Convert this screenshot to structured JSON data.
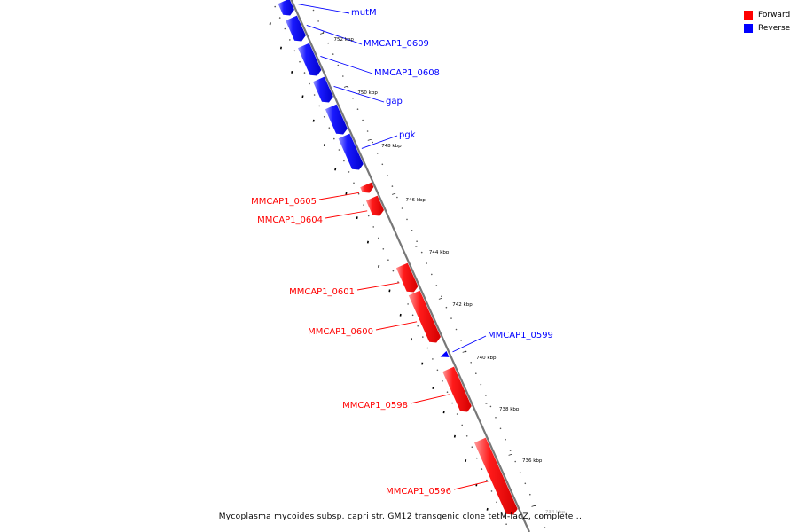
{
  "legend": {
    "forward_label": "Forward",
    "reverse_label": "Reverse",
    "forward_color": "#ff0000",
    "reverse_color": "#0000ff"
  },
  "caption": "Mycoplasma mycoides subsp. capri str. GM12 transgenic clone tetM-lacZ, complete ...",
  "ticks": [
    "752 kbp",
    "750 kbp",
    "748 kbp",
    "746 kbp",
    "744 kbp",
    "742 kbp",
    "740 kbp",
    "738 kbp",
    "736 kbp",
    "734 kbp"
  ],
  "genes": [
    {
      "name": "mutM",
      "strand": "reverse"
    },
    {
      "name": "MMCAP1_0609",
      "strand": "reverse"
    },
    {
      "name": "MMCAP1_0608",
      "strand": "reverse"
    },
    {
      "name": "gap",
      "strand": "reverse"
    },
    {
      "name": "pgk",
      "strand": "reverse"
    },
    {
      "name": "MMCAP1_0605",
      "strand": "forward"
    },
    {
      "name": "MMCAP1_0604",
      "strand": "forward"
    },
    {
      "name": "MMCAP1_0601",
      "strand": "forward"
    },
    {
      "name": "MMCAP1_0600",
      "strand": "forward"
    },
    {
      "name": "MMCAP1_0599",
      "strand": "reverse"
    },
    {
      "name": "MMCAP1_0598",
      "strand": "forward"
    },
    {
      "name": "MMCAP1_0596",
      "strand": "forward"
    }
  ]
}
